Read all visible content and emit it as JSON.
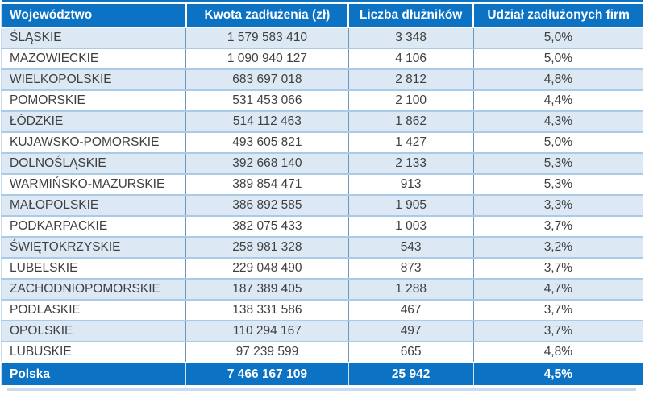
{
  "chart_data": {
    "type": "table",
    "columns": [
      "Województwo",
      "Kwota zadłużenia (zł)",
      "Liczba dłużników",
      "Udział zadłużonych firm"
    ],
    "rows": [
      [
        "ŚLĄSKIE",
        "1 579 583 410",
        "3 348",
        "5,0%"
      ],
      [
        "MAZOWIECKIE",
        "1 090 940 127",
        "4 106",
        "5,0%"
      ],
      [
        "WIELKOPOLSKIE",
        "683 697 018",
        "2 812",
        "4,8%"
      ],
      [
        "POMORSKIE",
        "531 453 066",
        "2 100",
        "4,4%"
      ],
      [
        "ŁÓDZKIE",
        "514 112 463",
        "1 862",
        "4,3%"
      ],
      [
        "KUJAWSKO-POMORSKIE",
        "493 605 821",
        "1 427",
        "5,0%"
      ],
      [
        "DOLNOŚLĄSKIE",
        "392 668 140",
        "2 133",
        "5,3%"
      ],
      [
        "WARMIŃSKO-MAZURSKIE",
        "389 854 471",
        "913",
        "5,3%"
      ],
      [
        "MAŁOPOLSKIE",
        "386 892 585",
        "1 905",
        "3,3%"
      ],
      [
        "PODKARPACKIE",
        "382 075 433",
        "1 003",
        "3,7%"
      ],
      [
        "ŚWIĘTOKRZYSKIE",
        "258 981 328",
        "543",
        "3,2%"
      ],
      [
        "LUBELSKIE",
        "229 048 490",
        "873",
        "3,7%"
      ],
      [
        "ZACHODNIOPOMORSKIE",
        "187 389 405",
        "1 288",
        "4,7%"
      ],
      [
        "PODLASKIE",
        "138 331 586",
        "467",
        "3,7%"
      ],
      [
        "OPOLSKIE",
        "110 294 167",
        "497",
        "3,7%"
      ],
      [
        "LUBUSKIE",
        "97 239 599",
        "665",
        "4,8%"
      ]
    ],
    "total_row": [
      "Polska",
      "7 466 167 109",
      "25 942",
      "4,5%"
    ],
    "layout": {
      "striped": true,
      "stripe_starts_on_first_data_row": true,
      "column_alignment": [
        "left",
        "center",
        "center",
        "center"
      ]
    }
  },
  "colors": {
    "header_background": "#0C72C4",
    "total_background": "#0C72C4",
    "stripe_background": "#DCE9F5",
    "row_separator": "#AACBE7",
    "column_divider": "#6E97BE",
    "data_text": "#404040",
    "header_text": "#FFFFFF"
  }
}
